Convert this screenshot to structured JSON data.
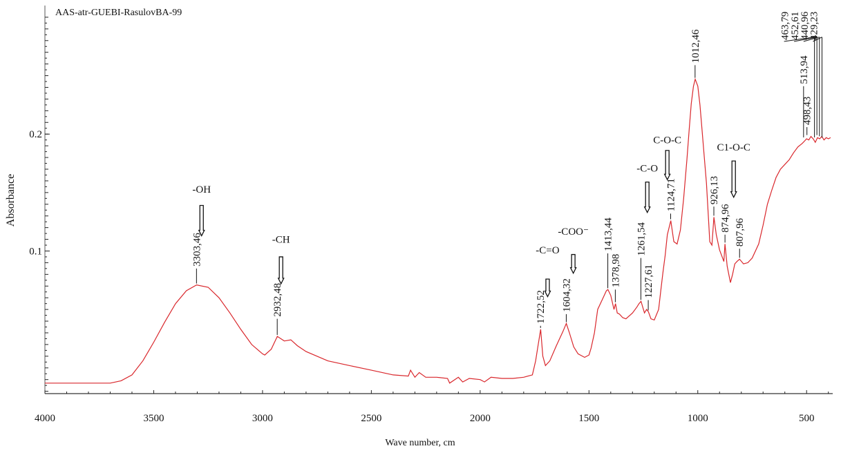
{
  "chart_data": {
    "type": "line",
    "title": "AAS-atr-GUEBI-RasulovBA-99",
    "xlabel": "Wave number, cm",
    "ylabel": "Absorbance",
    "xlim": [
      4000,
      380
    ],
    "ylim": [
      -0.022,
      0.31
    ],
    "xticks": [
      4000,
      3500,
      3000,
      2500,
      2000,
      1500,
      1000,
      500
    ],
    "xtick_labels": [
      "4000",
      "3500",
      "3000",
      "2500",
      "2000",
      "1500",
      "1000",
      "500"
    ],
    "yticks": [
      0.1,
      0.2
    ],
    "ytick_labels": [
      "0.1",
      "0.2"
    ],
    "grid": false,
    "line_color": "#d9262b",
    "series": [
      {
        "name": "spectrum",
        "x": [
          4000,
          3850,
          3700,
          3650,
          3600,
          3550,
          3500,
          3450,
          3400,
          3350,
          3303,
          3250,
          3200,
          3150,
          3100,
          3050,
          3000,
          2990,
          2960,
          2932,
          2900,
          2870,
          2840,
          2800,
          2700,
          2600,
          2500,
          2400,
          2330,
          2320,
          2300,
          2280,
          2250,
          2200,
          2150,
          2140,
          2100,
          2080,
          2050,
          2000,
          1980,
          1950,
          1900,
          1850,
          1800,
          1760,
          1745,
          1735,
          1722,
          1712,
          1700,
          1680,
          1650,
          1620,
          1604,
          1590,
          1570,
          1550,
          1520,
          1500,
          1490,
          1475,
          1460,
          1440,
          1420,
          1413,
          1400,
          1390,
          1385,
          1378,
          1370,
          1360,
          1345,
          1330,
          1300,
          1280,
          1270,
          1261,
          1245,
          1235,
          1227,
          1215,
          1200,
          1180,
          1170,
          1160,
          1150,
          1140,
          1124,
          1110,
          1095,
          1080,
          1065,
          1050,
          1040,
          1030,
          1020,
          1012,
          1000,
          990,
          980,
          970,
          960,
          950,
          945,
          935,
          926,
          915,
          900,
          890,
          880,
          875,
          865,
          850,
          840,
          830,
          820,
          808,
          790,
          770,
          750,
          720,
          700,
          680,
          660,
          640,
          620,
          600,
          580,
          560,
          540,
          520,
          510,
          500,
          490,
          480,
          470,
          460,
          450,
          440,
          430,
          420,
          410,
          400,
          390
        ],
        "y": [
          -0.013,
          -0.013,
          -0.013,
          -0.011,
          -0.006,
          0.006,
          0.022,
          0.039,
          0.055,
          0.066,
          0.071,
          0.069,
          0.06,
          0.047,
          0.033,
          0.02,
          0.012,
          0.011,
          0.016,
          0.027,
          0.023,
          0.024,
          0.019,
          0.014,
          0.006,
          0.002,
          -0.002,
          -0.006,
          -0.007,
          -0.002,
          -0.008,
          -0.004,
          -0.008,
          -0.008,
          -0.009,
          -0.013,
          -0.008,
          -0.012,
          -0.009,
          -0.01,
          -0.012,
          -0.008,
          -0.009,
          -0.009,
          -0.008,
          -0.006,
          0.006,
          0.018,
          0.033,
          0.01,
          0.002,
          0.006,
          0.019,
          0.031,
          0.038,
          0.03,
          0.018,
          0.012,
          0.009,
          0.011,
          0.017,
          0.03,
          0.05,
          0.058,
          0.066,
          0.067,
          0.062,
          0.054,
          0.05,
          0.055,
          0.047,
          0.046,
          0.043,
          0.042,
          0.047,
          0.052,
          0.055,
          0.057,
          0.047,
          0.05,
          0.048,
          0.042,
          0.041,
          0.05,
          0.066,
          0.082,
          0.096,
          0.114,
          0.126,
          0.108,
          0.106,
          0.118,
          0.145,
          0.178,
          0.203,
          0.226,
          0.241,
          0.247,
          0.241,
          0.225,
          0.203,
          0.18,
          0.158,
          0.125,
          0.108,
          0.105,
          0.129,
          0.114,
          0.101,
          0.096,
          0.091,
          0.106,
          0.087,
          0.073,
          0.08,
          0.089,
          0.091,
          0.093,
          0.089,
          0.09,
          0.094,
          0.106,
          0.122,
          0.14,
          0.152,
          0.163,
          0.17,
          0.174,
          0.178,
          0.184,
          0.189,
          0.192,
          0.194,
          0.196,
          0.195,
          0.198,
          0.196,
          0.193,
          0.197,
          0.196,
          0.198,
          0.195,
          0.197,
          0.196,
          0.197
        ]
      }
    ],
    "peak_labels": [
      {
        "text": "3303,46",
        "wn": 3303.46,
        "y": 0.071,
        "top": 0.085
      },
      {
        "text": "2932,48",
        "wn": 2932.48,
        "y": 0.027,
        "top": 0.042
      },
      {
        "text": "1722,52",
        "wn": 1722.52,
        "y": 0.033,
        "top": 0.036
      },
      {
        "text": "1604,32",
        "wn": 1604.32,
        "y": 0.038,
        "top": 0.046
      },
      {
        "text": "1413,44",
        "wn": 1413.44,
        "y": 0.067,
        "top": 0.098
      },
      {
        "text": "1378,98",
        "wn": 1378.98,
        "y": 0.055,
        "top": 0.067
      },
      {
        "text": "1261,54",
        "wn": 1261.54,
        "y": 0.057,
        "top": 0.094
      },
      {
        "text": "1227,61",
        "wn": 1227.61,
        "y": 0.048,
        "top": 0.058
      },
      {
        "text": "1124,71",
        "wn": 1124.71,
        "y": 0.126,
        "top": 0.132
      },
      {
        "text": "1012,46",
        "wn": 1012.46,
        "y": 0.247,
        "top": 0.259
      },
      {
        "text": "926,13",
        "wn": 926.13,
        "y": 0.129,
        "top": 0.138
      },
      {
        "text": "874,96",
        "wn": 874.96,
        "y": 0.106,
        "top": 0.114
      },
      {
        "text": "807,96",
        "wn": 807.96,
        "y": 0.093,
        "top": 0.102
      },
      {
        "text": "498,43",
        "wn": 498.43,
        "y": 0.198,
        "top": 0.206
      },
      {
        "text": "513,94",
        "wn": 513.94,
        "y": 0.196,
        "top": 0.241
      },
      {
        "text": "463,79",
        "wn": 463.79,
        "y": 0.196,
        "top": 0.283,
        "lw": 640
      },
      {
        "text": "452,61",
        "wn": 452.61,
        "y": 0.198,
        "top": 0.283,
        "lw": 560
      },
      {
        "text": "440,96",
        "wn": 440.96,
        "y": 0.197,
        "top": 0.283,
        "lw": 490
      },
      {
        "text": "429,23",
        "wn": 429.23,
        "y": 0.196,
        "top": 0.283,
        "lw": 430
      }
    ],
    "group_labels": [
      {
        "text": "-OH",
        "wn": 3280,
        "label_y": 0.15,
        "arrow_top": 0.139,
        "arrow_bottom": 0.113
      },
      {
        "text": "-CH",
        "wn": 2915,
        "label_y": 0.107,
        "arrow_top": 0.095,
        "arrow_bottom": 0.072
      },
      {
        "text": "-C=O",
        "wn": 1690,
        "label_y": 0.098,
        "arrow_top": 0.076,
        "arrow_bottom": 0.061
      },
      {
        "text": "-COO⁻",
        "wn": 1572,
        "label_y": 0.114,
        "arrow_top": 0.097,
        "arrow_bottom": 0.081
      },
      {
        "text": "-C-O",
        "wn": 1232,
        "label_y": 0.168,
        "arrow_top": 0.159,
        "arrow_bottom": 0.133
      },
      {
        "text": "C-O-C",
        "wn": 1140,
        "label_y": 0.192,
        "arrow_top": 0.186,
        "arrow_bottom": 0.161
      },
      {
        "text": "C1-O-C",
        "wn": 835,
        "label_y": 0.186,
        "arrow_top": 0.177,
        "arrow_bottom": 0.146
      }
    ]
  }
}
